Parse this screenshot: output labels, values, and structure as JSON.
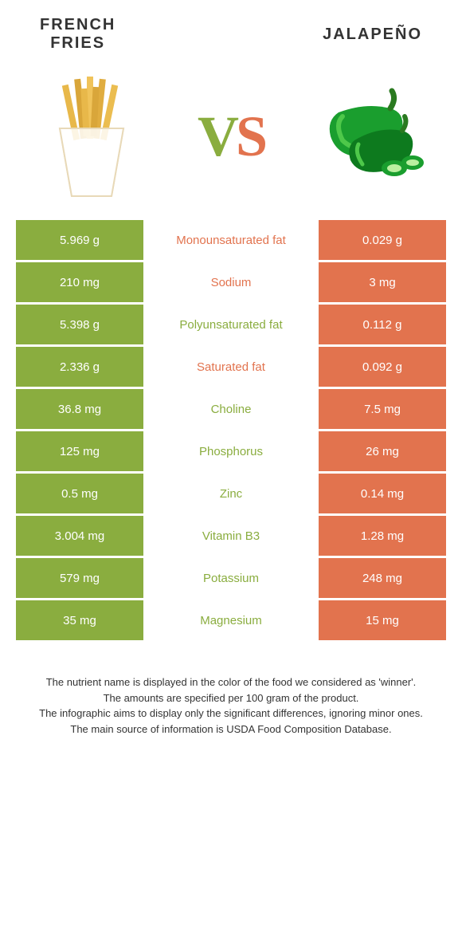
{
  "header": {
    "left_title_line1": "FRENCH",
    "left_title_line2": "FRIES",
    "right_title": "JALAPEÑO"
  },
  "vs": {
    "v": "V",
    "s": "S"
  },
  "colors": {
    "green": "#8aad3f",
    "orange": "#e2734e",
    "text": "#333333",
    "bg": "#ffffff"
  },
  "table": {
    "rows": [
      {
        "left": "5.969 g",
        "label": "Monounsaturated fat",
        "winner": "orange",
        "right": "0.029 g"
      },
      {
        "left": "210 mg",
        "label": "Sodium",
        "winner": "orange",
        "right": "3 mg"
      },
      {
        "left": "5.398 g",
        "label": "Polyunsaturated fat",
        "winner": "green",
        "right": "0.112 g"
      },
      {
        "left": "2.336 g",
        "label": "Saturated fat",
        "winner": "orange",
        "right": "0.092 g"
      },
      {
        "left": "36.8 mg",
        "label": "Choline",
        "winner": "green",
        "right": "7.5 mg"
      },
      {
        "left": "125 mg",
        "label": "Phosphorus",
        "winner": "green",
        "right": "26 mg"
      },
      {
        "left": "0.5 mg",
        "label": "Zinc",
        "winner": "green",
        "right": "0.14 mg"
      },
      {
        "left": "3.004 mg",
        "label": "Vitamin B3",
        "winner": "green",
        "right": "1.28 mg"
      },
      {
        "left": "579 mg",
        "label": "Potassium",
        "winner": "green",
        "right": "248 mg"
      },
      {
        "left": "35 mg",
        "label": "Magnesium",
        "winner": "green",
        "right": "15 mg"
      }
    ]
  },
  "footer": {
    "line1": "The nutrient name is displayed in the color of the food we considered as 'winner'.",
    "line2": "The amounts are specified per 100 gram of the product.",
    "line3": "The infographic aims to display only the significant differences, ignoring minor ones.",
    "line4": "The main source of information is USDA Food Composition Database."
  },
  "images": {
    "fries": {
      "bag_fill": "#fdfdfd",
      "bag_stroke": "#e8d9b8",
      "fry_colors": [
        "#e8b84a",
        "#d9a63a",
        "#f0c35a",
        "#e0ad40",
        "#ebbd50"
      ]
    },
    "jalapeno": {
      "body": "#1a9e2e",
      "highlight": "#4ec84a",
      "dark": "#0d7a1e",
      "stem": "#2a7a20"
    }
  }
}
